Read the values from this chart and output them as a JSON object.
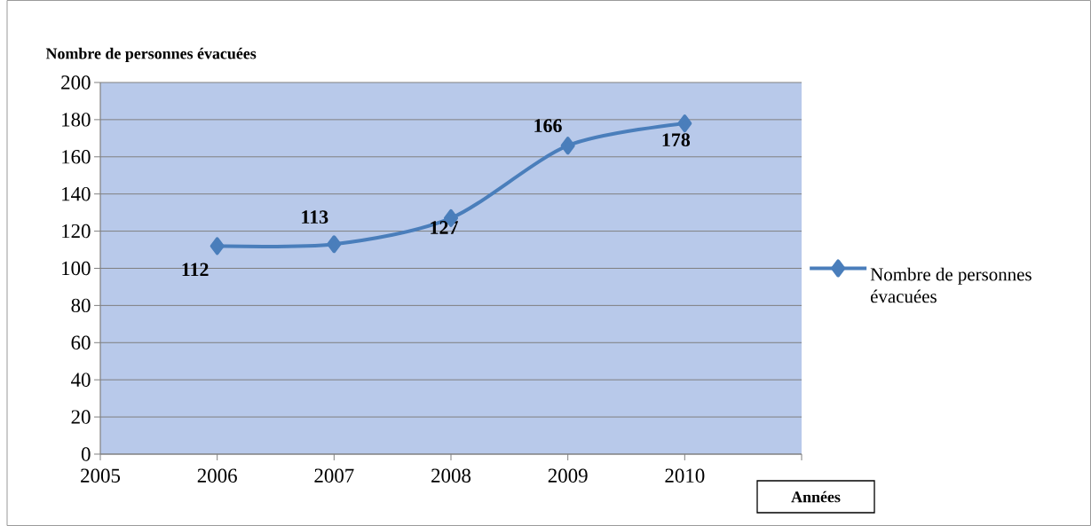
{
  "chart_data": {
    "type": "line",
    "ylabel": "Nombre de personnes évacuées",
    "xlabel": "Années",
    "x": [
      2006,
      2007,
      2008,
      2009,
      2010
    ],
    "series": [
      {
        "name": "Nombre de personnes évacuées",
        "color": "#4a7ebb",
        "values": [
          112,
          113,
          127,
          166,
          178
        ]
      }
    ],
    "xlim": [
      2005,
      2011
    ],
    "xticks": [
      2005,
      2006,
      2007,
      2008,
      2009,
      2010,
      {
        "value": 2011,
        "label": null
      }
    ],
    "ylim": [
      0,
      200
    ],
    "yticks": [
      0,
      20,
      40,
      60,
      80,
      100,
      120,
      140,
      160,
      180,
      200
    ],
    "grid": "y",
    "legend": "right",
    "marker": "diamond",
    "line_style": "solid",
    "data_labels": true
  }
}
